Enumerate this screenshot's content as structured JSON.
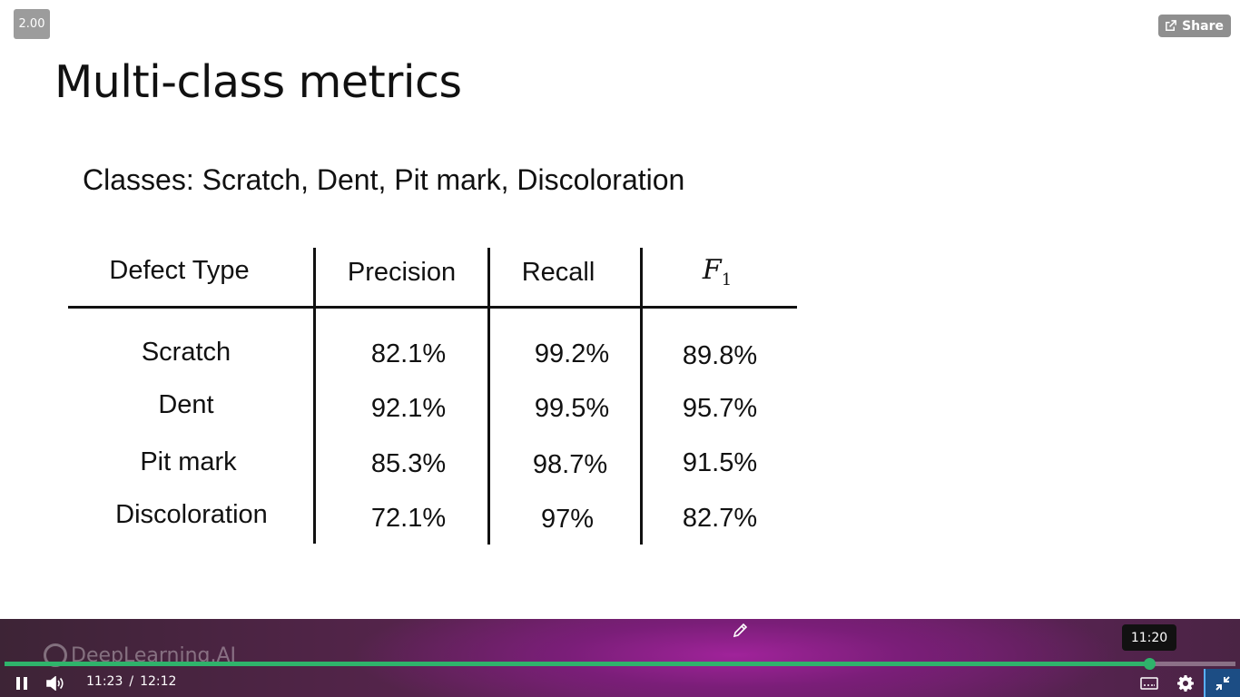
{
  "player": {
    "speed": "2.00",
    "share_label": "Share",
    "brand": "DeepLearning.AI",
    "hover_time": "11:20",
    "current_time": "11:23",
    "separator": "/",
    "duration": "12:12",
    "progress_fraction": 0.93,
    "accent_color": "#2fb36b",
    "icons": [
      "share-icon",
      "pencil-icon",
      "pause-icon",
      "volume-icon",
      "captions-icon",
      "gear-icon",
      "exit-fullscreen-icon"
    ]
  },
  "slide": {
    "title": "Multi-class metrics",
    "classes_line": "Classes: Scratch, Dent, Pit mark, Discoloration",
    "table": {
      "headers": [
        "Defect Type",
        "Precision",
        "Recall",
        "F",
        "1"
      ],
      "rows": [
        [
          "Scratch",
          "82.1%",
          "99.2%",
          "89.8%"
        ],
        [
          "Dent",
          "92.1%",
          "99.5%",
          "95.7%"
        ],
        [
          "Pit mark",
          "85.3%",
          "98.7%",
          "91.5%"
        ],
        [
          "Discoloration",
          "72.1%",
          "97%",
          "82.7%"
        ]
      ]
    }
  }
}
